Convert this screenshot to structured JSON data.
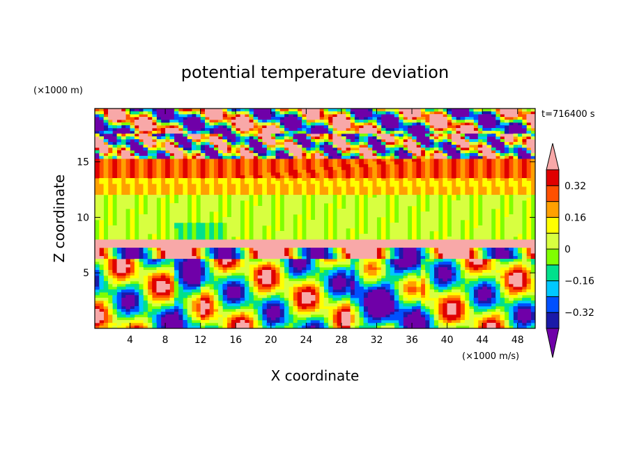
{
  "chart_data": {
    "type": "heatmap",
    "title": "potential temperature deviation",
    "xlabel": "X coordinate",
    "ylabel": "Z coordinate",
    "x_unit": "(×1000 m/s)",
    "y_unit": "(×1000 m)",
    "time_label": "t=716400 s",
    "xlim": [
      0,
      50
    ],
    "ylim": [
      0,
      19.8
    ],
    "x_ticks": [
      4,
      8,
      12,
      16,
      20,
      24,
      28,
      32,
      36,
      40,
      44,
      48
    ],
    "y_ticks": [
      5,
      10,
      15
    ],
    "colorbar": {
      "levels": [
        -0.4,
        -0.32,
        -0.24,
        -0.16,
        -0.08,
        0,
        0.08,
        0.16,
        0.24,
        0.32,
        0.4
      ],
      "labels": [
        "0.32",
        "0.16",
        "0",
        "−0.16",
        "−0.32"
      ],
      "label_values": [
        0.32,
        0.16,
        0,
        -0.16,
        -0.32
      ],
      "extend": "both",
      "colors": [
        "#6f00a8",
        "#1a1aa8",
        "#0050ff",
        "#00c8ff",
        "#00e08c",
        "#80ff00",
        "#d8ff40",
        "#ffff00",
        "#ffa000",
        "#ff5000",
        "#e00000",
        "#f8a8a8"
      ]
    }
  }
}
